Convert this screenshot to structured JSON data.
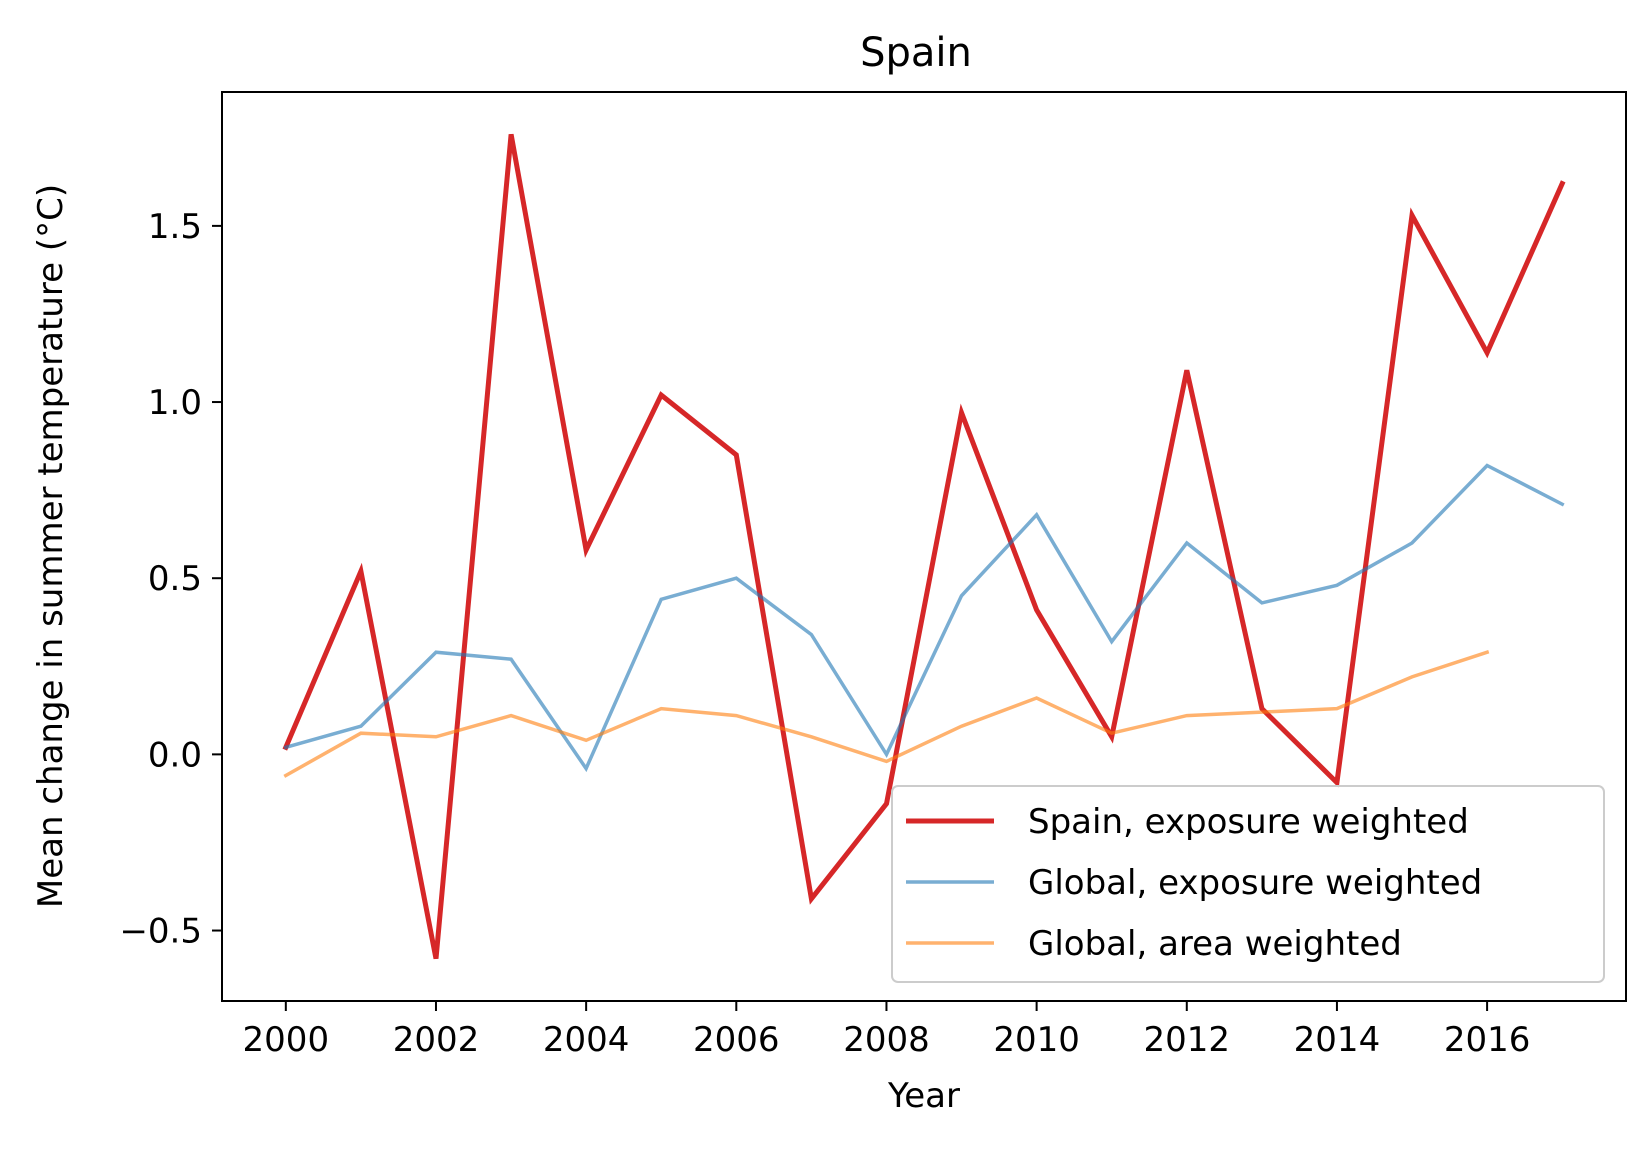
{
  "chart_data": {
    "type": "line",
    "title": "Spain",
    "xlabel": "Year",
    "ylabel": "Mean change in summer temperature (°C)",
    "xlim": [
      1999.15,
      2017.85
    ],
    "ylim": [
      -0.7,
      1.88
    ],
    "xticks": [
      2000,
      2002,
      2004,
      2006,
      2008,
      2010,
      2012,
      2014,
      2016
    ],
    "xtick_labels": [
      "2000",
      "2002",
      "2004",
      "2006",
      "2008",
      "2010",
      "2012",
      "2014",
      "2016"
    ],
    "yticks": [
      -0.5,
      0.0,
      0.5,
      1.0,
      1.5
    ],
    "ytick_labels": [
      "−0.5",
      "0.0",
      "0.5",
      "1.0",
      "1.5"
    ],
    "grid": false,
    "legend_position": "lower-right",
    "series": [
      {
        "name": "Spain, exposure weighted",
        "color": "#d62728",
        "width": 5,
        "opacity": 1,
        "x": [
          2000,
          2001,
          2002,
          2003,
          2004,
          2005,
          2006,
          2007,
          2008,
          2009,
          2010,
          2011,
          2012,
          2013,
          2014,
          2015,
          2016,
          2017
        ],
        "values": [
          0.02,
          0.52,
          -0.58,
          1.76,
          0.58,
          1.02,
          0.85,
          -0.41,
          -0.14,
          0.97,
          0.41,
          0.05,
          1.09,
          0.13,
          -0.08,
          1.53,
          1.14,
          1.62
        ]
      },
      {
        "name": "Global, exposure weighted",
        "color": "#1f77b4",
        "width": 3.5,
        "opacity": 0.6,
        "x": [
          2000,
          2001,
          2002,
          2003,
          2004,
          2005,
          2006,
          2007,
          2008,
          2009,
          2010,
          2011,
          2012,
          2013,
          2014,
          2015,
          2016,
          2017
        ],
        "values": [
          0.02,
          0.08,
          0.29,
          0.27,
          -0.04,
          0.44,
          0.5,
          0.34,
          0.0,
          0.45,
          0.68,
          0.32,
          0.6,
          0.43,
          0.48,
          0.6,
          0.82,
          0.71
        ]
      },
      {
        "name": "Global, area weighted",
        "color": "#ff7f0e",
        "width": 3.5,
        "opacity": 0.6,
        "x": [
          2000,
          2001,
          2002,
          2003,
          2004,
          2005,
          2006,
          2007,
          2008,
          2009,
          2010,
          2011,
          2012,
          2013,
          2014,
          2015,
          2016
        ],
        "values": [
          -0.06,
          0.06,
          0.05,
          0.11,
          0.04,
          0.13,
          0.11,
          0.05,
          -0.02,
          0.08,
          0.16,
          0.06,
          0.11,
          0.12,
          0.13,
          0.22,
          0.29
        ]
      }
    ]
  }
}
